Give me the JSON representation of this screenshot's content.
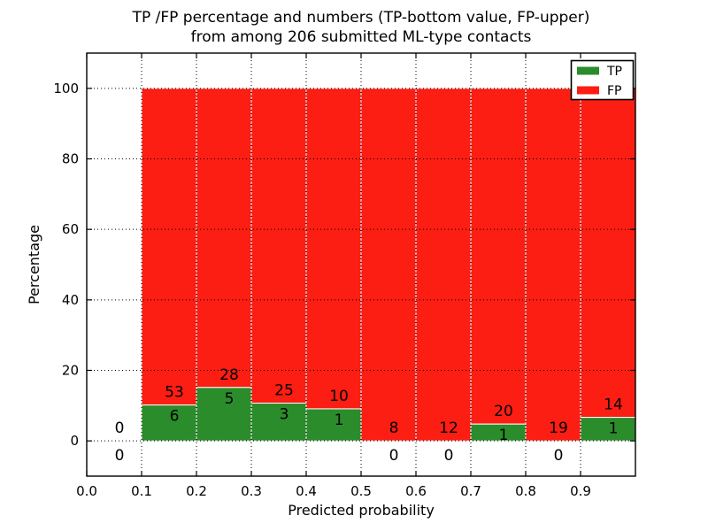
{
  "chart_data": {
    "type": "bar",
    "stacked": true,
    "title_line1": "TP /FP percentage and numbers (TP-bottom value, FP-upper)",
    "title_line2": "from among 206 submitted ML-type contacts",
    "xlabel": "Predicted probability",
    "ylabel": "Percentage",
    "xlim": [
      0.0,
      1.0
    ],
    "ylim": [
      -10,
      110
    ],
    "xticks": [
      0.0,
      0.1,
      0.2,
      0.3,
      0.4,
      0.5,
      0.6,
      0.7,
      0.8,
      0.9
    ],
    "yticks": [
      0,
      20,
      40,
      60,
      80,
      100
    ],
    "grid": {
      "show": true,
      "style": "dotted",
      "axes": "both",
      "color": "#000000"
    },
    "total_contacts": 206,
    "legend": {
      "position": "upper-right",
      "entries": [
        {
          "label": "TP",
          "color": "#2b8c2b"
        },
        {
          "label": "FP",
          "color": "#fc1d13"
        }
      ]
    },
    "bins": [
      {
        "range": [
          0.0,
          0.1
        ],
        "tp": 0,
        "fp": 0,
        "tp_pct": 0.0,
        "fp_pct": 0.0
      },
      {
        "range": [
          0.1,
          0.2
        ],
        "tp": 6,
        "fp": 53,
        "tp_pct": 10.2,
        "fp_pct": 89.8
      },
      {
        "range": [
          0.2,
          0.3
        ],
        "tp": 5,
        "fp": 28,
        "tp_pct": 15.2,
        "fp_pct": 84.8
      },
      {
        "range": [
          0.3,
          0.4
        ],
        "tp": 3,
        "fp": 25,
        "tp_pct": 10.7,
        "fp_pct": 89.3
      },
      {
        "range": [
          0.4,
          0.5
        ],
        "tp": 1,
        "fp": 10,
        "tp_pct": 9.1,
        "fp_pct": 90.9
      },
      {
        "range": [
          0.5,
          0.6
        ],
        "tp": 0,
        "fp": 8,
        "tp_pct": 0.0,
        "fp_pct": 100.0
      },
      {
        "range": [
          0.6,
          0.7
        ],
        "tp": 0,
        "fp": 12,
        "tp_pct": 0.0,
        "fp_pct": 100.0
      },
      {
        "range": [
          0.7,
          0.8
        ],
        "tp": 1,
        "fp": 20,
        "tp_pct": 4.8,
        "fp_pct": 95.2
      },
      {
        "range": [
          0.8,
          0.9
        ],
        "tp": 0,
        "fp": 19,
        "tp_pct": 0.0,
        "fp_pct": 100.0
      },
      {
        "range": [
          0.9,
          1.0
        ],
        "tp": 1,
        "fp": 14,
        "tp_pct": 6.7,
        "fp_pct": 93.3
      }
    ],
    "colors": {
      "tp": "#2b8c2b",
      "fp": "#fc1d13",
      "bar_edge": "#ffffff",
      "axes": "#000000",
      "grid": "#000000",
      "text": "#000000",
      "background": "#ffffff"
    }
  }
}
